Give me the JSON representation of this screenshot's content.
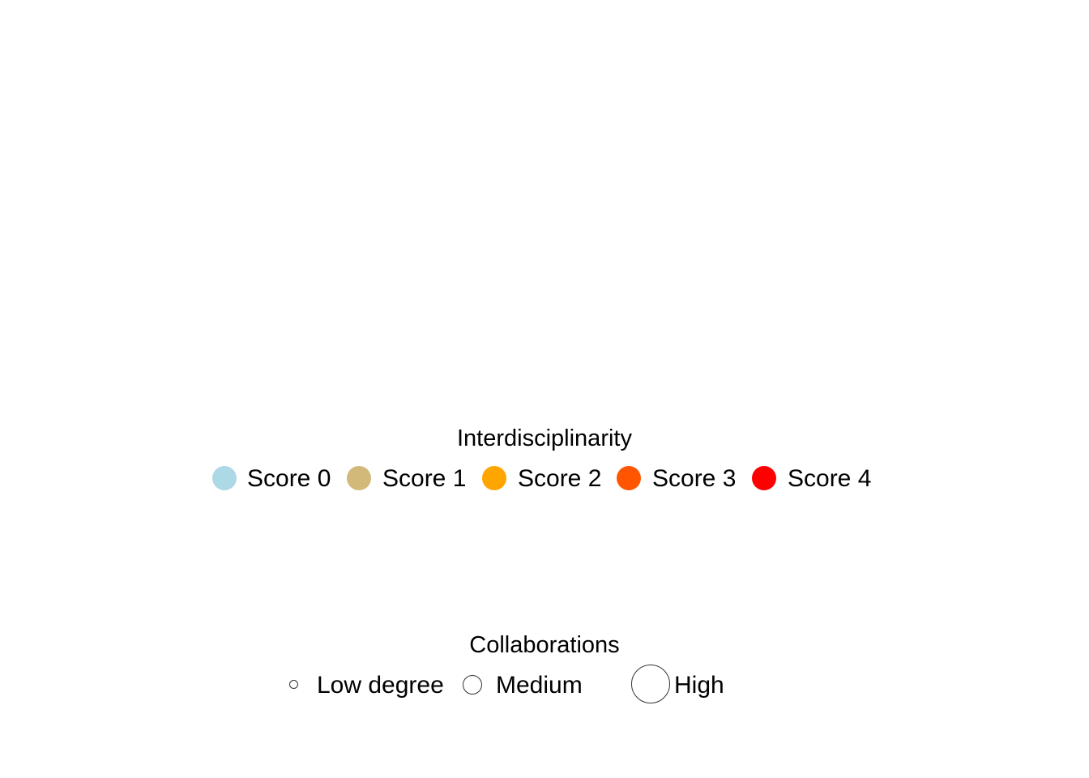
{
  "legends": {
    "interdisciplinarity": {
      "title": "Interdisciplinarity",
      "items": [
        {
          "label": "Score 0",
          "color": "#add8e6"
        },
        {
          "label": "Score 1",
          "color": "#d2b97a"
        },
        {
          "label": "Score 2",
          "color": "#ffa500"
        },
        {
          "label": "Score 3",
          "color": "#ff5500"
        },
        {
          "label": "Score 4",
          "color": "#ff0000"
        }
      ]
    },
    "collaborations": {
      "title": "Collaborations",
      "items": [
        {
          "label": "Low degree"
        },
        {
          "label": "Medium"
        },
        {
          "label": "High"
        }
      ]
    }
  }
}
